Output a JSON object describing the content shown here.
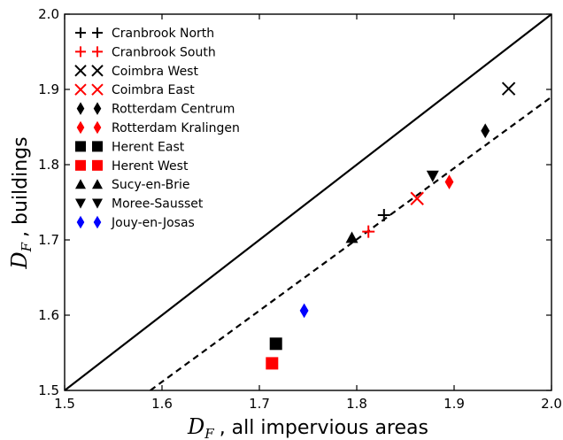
{
  "chart_data": {
    "type": "scatter",
    "xlabel": "D_F , all impervious areas",
    "ylabel": "D_F , buildings",
    "xlabel_symbol": "D",
    "xlabel_sub": "F",
    "xlabel_text": ", all impervious areas",
    "ylabel_symbol": "D",
    "ylabel_sub": "F",
    "ylabel_text": ", buildings",
    "xlim": [
      1.5,
      2.0
    ],
    "ylim": [
      1.5,
      2.0
    ],
    "xticks": [
      "1.5",
      "1.6",
      "1.7",
      "1.8",
      "1.9",
      "2.0"
    ],
    "yticks": [
      "1.5",
      "1.6",
      "1.7",
      "1.8",
      "1.9",
      "2.0"
    ],
    "grid": false,
    "legend_placement": "top-left",
    "reference_lines": [
      {
        "style": "solid",
        "x": [
          1.5,
          2.0
        ],
        "y": [
          1.5,
          2.0
        ]
      },
      {
        "style": "dashed",
        "x": [
          1.588,
          2.0
        ],
        "y": [
          1.5,
          1.89
        ]
      }
    ],
    "series": [
      {
        "name": "Cranbrook North",
        "marker": "plus",
        "color": "#000000",
        "x": [
          1.828
        ],
        "y": [
          1.733
        ]
      },
      {
        "name": "Cranbrook South",
        "marker": "plus",
        "color": "#ff0000",
        "x": [
          1.812
        ],
        "y": [
          1.711
        ]
      },
      {
        "name": "Coimbra West",
        "marker": "x",
        "color": "#000000",
        "x": [
          1.956
        ],
        "y": [
          1.901
        ]
      },
      {
        "name": "Coimbra East",
        "marker": "x",
        "color": "#ff0000",
        "x": [
          1.862
        ],
        "y": [
          1.755
        ]
      },
      {
        "name": "Rotterdam Centrum",
        "marker": "diamond",
        "color": "#000000",
        "x": [
          1.932
        ],
        "y": [
          1.845
        ]
      },
      {
        "name": "Rotterdam Kralingen",
        "marker": "diamond",
        "color": "#ff0000",
        "x": [
          1.895
        ],
        "y": [
          1.777
        ]
      },
      {
        "name": "Herent East",
        "marker": "square",
        "color": "#000000",
        "x": [
          1.717
        ],
        "y": [
          1.562
        ]
      },
      {
        "name": "Herent West",
        "marker": "square",
        "color": "#ff0000",
        "x": [
          1.713
        ],
        "y": [
          1.536
        ]
      },
      {
        "name": "Sucy-en-Brie",
        "marker": "triangle-up",
        "color": "#000000",
        "x": [
          1.795
        ],
        "y": [
          1.703
        ]
      },
      {
        "name": "Moree-Sausset",
        "marker": "triangle-down",
        "color": "#000000",
        "x": [
          1.878
        ],
        "y": [
          1.785
        ]
      },
      {
        "name": "Jouy-en-Josas",
        "marker": "diamond",
        "color": "#0000ff",
        "x": [
          1.746
        ],
        "y": [
          1.606
        ]
      }
    ]
  }
}
